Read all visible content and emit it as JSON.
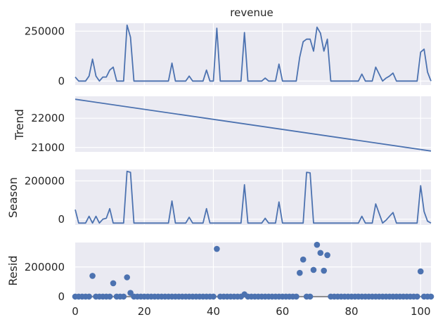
{
  "chart_data": [
    {
      "type": "line",
      "title": "revenue",
      "ylabel": "",
      "xlim": [
        0,
        103
      ],
      "ylim": [
        -20000,
        290000
      ],
      "yticks": [
        0,
        250000
      ],
      "grid": true,
      "series": [
        {
          "values": [
            20000,
            0,
            0,
            0,
            25000,
            110000,
            25000,
            0,
            20000,
            20000,
            55000,
            70000,
            0,
            0,
            0,
            280000,
            220000,
            0,
            0,
            0,
            0,
            0,
            0,
            0,
            0,
            0,
            0,
            0,
            90000,
            0,
            0,
            0,
            0,
            25000,
            0,
            0,
            0,
            0,
            55000,
            0,
            0,
            265000,
            0,
            0,
            0,
            0,
            0,
            0,
            0,
            243000,
            0,
            0,
            0,
            0,
            0,
            15000,
            0,
            0,
            0,
            85000,
            0,
            0,
            0,
            0,
            0,
            120000,
            197000,
            210000,
            210000,
            150000,
            270000,
            240000,
            150000,
            210000,
            0,
            0,
            0,
            0,
            0,
            0,
            0,
            0,
            0,
            35000,
            0,
            0,
            0,
            70000,
            35000,
            0,
            15000,
            25000,
            40000,
            0,
            0,
            0,
            0,
            0,
            0,
            0,
            145000,
            160000,
            45000,
            0
          ]
        }
      ]
    },
    {
      "type": "line",
      "title": "",
      "ylabel": "Trend",
      "xlim": [
        0,
        103
      ],
      "ylim": [
        20850,
        22750
      ],
      "yticks": [
        21000,
        22000
      ],
      "grid": true,
      "series": [
        {
          "x": [
            0,
            103
          ],
          "values": [
            22650,
            20880
          ]
        }
      ]
    },
    {
      "type": "line",
      "title": "",
      "ylabel": "Season",
      "xlim": [
        0,
        103
      ],
      "ylim": [
        -30000,
        260000
      ],
      "yticks": [
        0,
        200000
      ],
      "grid": true,
      "series": [
        {
          "values": [
            50000,
            -20000,
            -20000,
            -20000,
            15000,
            -20000,
            15000,
            -20000,
            0,
            5000,
            55000,
            -20000,
            -20000,
            -20000,
            -20000,
            250000,
            245000,
            -20000,
            -20000,
            -20000,
            -20000,
            -20000,
            -20000,
            -20000,
            -20000,
            -20000,
            -20000,
            -20000,
            95000,
            -20000,
            -20000,
            -20000,
            -20000,
            10000,
            -20000,
            -20000,
            -20000,
            -20000,
            55000,
            -20000,
            -20000,
            -20000,
            -20000,
            -20000,
            -20000,
            -20000,
            -20000,
            -20000,
            -20000,
            180000,
            -20000,
            -20000,
            -20000,
            -20000,
            -20000,
            5000,
            -20000,
            -20000,
            -20000,
            90000,
            -20000,
            -20000,
            -20000,
            -20000,
            -20000,
            -20000,
            -20000,
            245000,
            242000,
            -20000,
            -20000,
            -20000,
            -20000,
            -20000,
            -20000,
            -20000,
            -20000,
            -20000,
            -20000,
            -20000,
            -20000,
            -20000,
            -20000,
            15000,
            -20000,
            -20000,
            -20000,
            80000,
            30000,
            -20000,
            -5000,
            15000,
            35000,
            -20000,
            -20000,
            -20000,
            -20000,
            -20000,
            -20000,
            -20000,
            175000,
            40000,
            -10000,
            -20000
          ]
        }
      ]
    },
    {
      "type": "scatter",
      "title": "",
      "ylabel": "Resid",
      "xlabel": "",
      "xlim": [
        0,
        103
      ],
      "ylim": [
        -10000,
        365000
      ],
      "yticks": [
        0,
        200000
      ],
      "xticks": [
        0,
        20,
        40,
        60,
        80,
        100
      ],
      "grid": true,
      "zero_line": true,
      "series": [
        {
          "values": [
            0,
            0,
            0,
            0,
            0,
            140000,
            0,
            0,
            0,
            0,
            0,
            90000,
            0,
            0,
            0,
            130000,
            25000,
            0,
            0,
            0,
            0,
            0,
            0,
            0,
            0,
            0,
            0,
            0,
            0,
            0,
            0,
            0,
            0,
            0,
            0,
            0,
            0,
            0,
            0,
            0,
            0,
            322000,
            0,
            0,
            0,
            0,
            0,
            0,
            0,
            15000,
            0,
            0,
            0,
            0,
            0,
            0,
            0,
            0,
            0,
            0,
            0,
            0,
            0,
            0,
            0,
            160000,
            250000,
            0,
            0,
            180000,
            350000,
            295000,
            175000,
            280000,
            0,
            0,
            0,
            0,
            0,
            0,
            0,
            0,
            0,
            0,
            0,
            0,
            0,
            0,
            0,
            0,
            0,
            0,
            0,
            0,
            0,
            0,
            0,
            0,
            0,
            0,
            170000,
            0,
            0,
            0
          ]
        }
      ]
    }
  ]
}
